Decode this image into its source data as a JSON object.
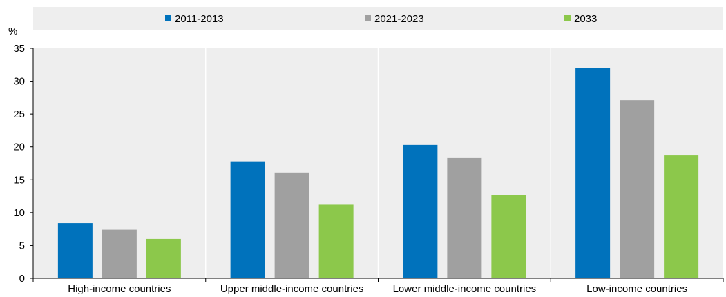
{
  "chart_data": {
    "type": "bar",
    "title": "",
    "xlabel": "",
    "ylabel": "%",
    "ylim": [
      0,
      35
    ],
    "yticks": [
      0,
      5,
      10,
      15,
      20,
      25,
      30,
      35
    ],
    "categories": [
      "High-income countries",
      "Upper middle-income countries",
      "Lower middle-income countries",
      "Low-income countries"
    ],
    "series": [
      {
        "name": "2011-2013",
        "color": "#0072bc",
        "values": [
          8.4,
          17.8,
          20.3,
          32.0
        ]
      },
      {
        "name": "2021-2023",
        "color": "#a0a0a0",
        "values": [
          7.4,
          16.1,
          18.3,
          27.1
        ]
      },
      {
        "name": "2033",
        "color": "#8cc84b",
        "values": [
          6.0,
          11.2,
          12.7,
          18.7
        ]
      }
    ],
    "legend_position": "top",
    "grid": false
  }
}
